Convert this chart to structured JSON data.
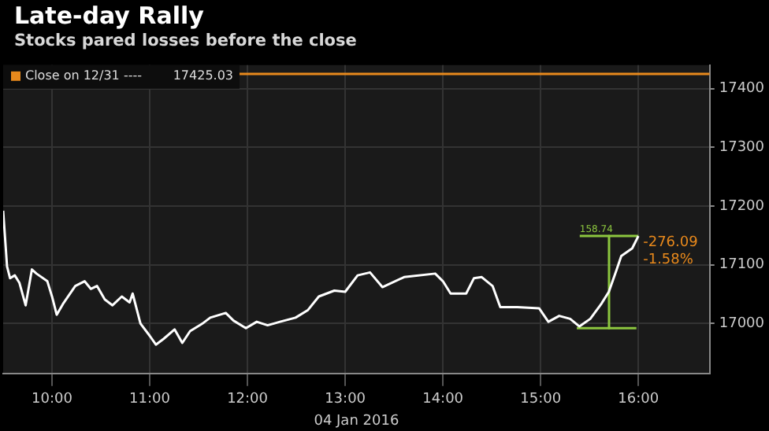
{
  "chart_data": {
    "type": "line",
    "title": "Late-day Rally",
    "subtitle": "Stocks pared losses before the close",
    "xlabel": "04 Jan 2016",
    "xlim": [
      9.5,
      16.73
    ],
    "xticks": [
      {
        "value": 10,
        "label": "10:00"
      },
      {
        "value": 11,
        "label": "11:00"
      },
      {
        "value": 12,
        "label": "12:00"
      },
      {
        "value": 13,
        "label": "13:00"
      },
      {
        "value": 14,
        "label": "14:00"
      },
      {
        "value": 15,
        "label": "15:00"
      },
      {
        "value": 16,
        "label": "16:00"
      }
    ],
    "ylim": [
      16915,
      17440
    ],
    "yticks": [
      17000,
      17100,
      17200,
      17300,
      17400
    ],
    "grid": true,
    "legend": "top left",
    "series": [
      {
        "color": "#ffffff",
        "x": [
          9.5,
          9.54,
          9.571,
          9.619,
          9.667,
          9.73,
          9.794,
          9.841,
          9.952,
          10,
          10.048,
          10.111,
          10.238,
          10.333,
          10.397,
          10.46,
          10.54,
          10.619,
          10.714,
          10.794,
          10.825,
          10.905,
          11,
          11.063,
          11.143,
          11.254,
          11.333,
          11.413,
          11.54,
          11.619,
          11.778,
          11.857,
          11.984,
          12.095,
          12.206,
          12.333,
          12.492,
          12.619,
          12.73,
          12.889,
          13,
          13.127,
          13.254,
          13.381,
          13.603,
          13.921,
          14,
          14.079,
          14.238,
          14.317,
          14.397,
          14.508,
          14.587,
          14.762,
          14.984,
          15.079,
          15.19,
          15.302,
          15.397,
          15.508,
          15.619,
          15.698,
          15.778,
          15.825,
          15.937,
          16
        ],
        "values": [
          17192,
          17097,
          17077,
          17082,
          17069,
          17031,
          17092,
          17085,
          17072,
          17046,
          17015,
          17033,
          17064,
          17072,
          17059,
          17064,
          17041,
          17031,
          17046,
          17036,
          17051,
          17000,
          16979,
          16964,
          16974,
          16990,
          16967,
          16987,
          17000,
          17010,
          17018,
          17005,
          16992,
          17003,
          16997,
          17003,
          17010,
          17023,
          17046,
          17056,
          17054,
          17082,
          17087,
          17062,
          17079,
          17085,
          17072,
          17051,
          17051,
          17077,
          17079,
          17064,
          17028,
          17028,
          17026,
          17003,
          17013,
          17008,
          16995,
          17008,
          17033,
          17054,
          17092,
          17115,
          17128,
          17149
        ]
      },
      {
        "name": "Close on 12/31 ----",
        "color": "#e8891c",
        "x": [
          11.9,
          16.73
        ],
        "values": [
          17425.03,
          17425.03
        ]
      },
      {
        "color": "#8cc63f",
        "x": [
          15.37,
          15.98
        ],
        "values": [
          16992,
          16992
        ]
      },
      {
        "color": "#8cc63f",
        "x": [
          15.4,
          16
        ],
        "values": [
          17149,
          17149
        ]
      },
      {
        "color": "#8cc63f",
        "x": [
          15.7,
          15.7
        ],
        "values": [
          17149,
          16992
        ]
      }
    ],
    "annotations": [
      "158.74",
      "-276.09",
      "-1.58%",
      "17425.03"
    ]
  }
}
